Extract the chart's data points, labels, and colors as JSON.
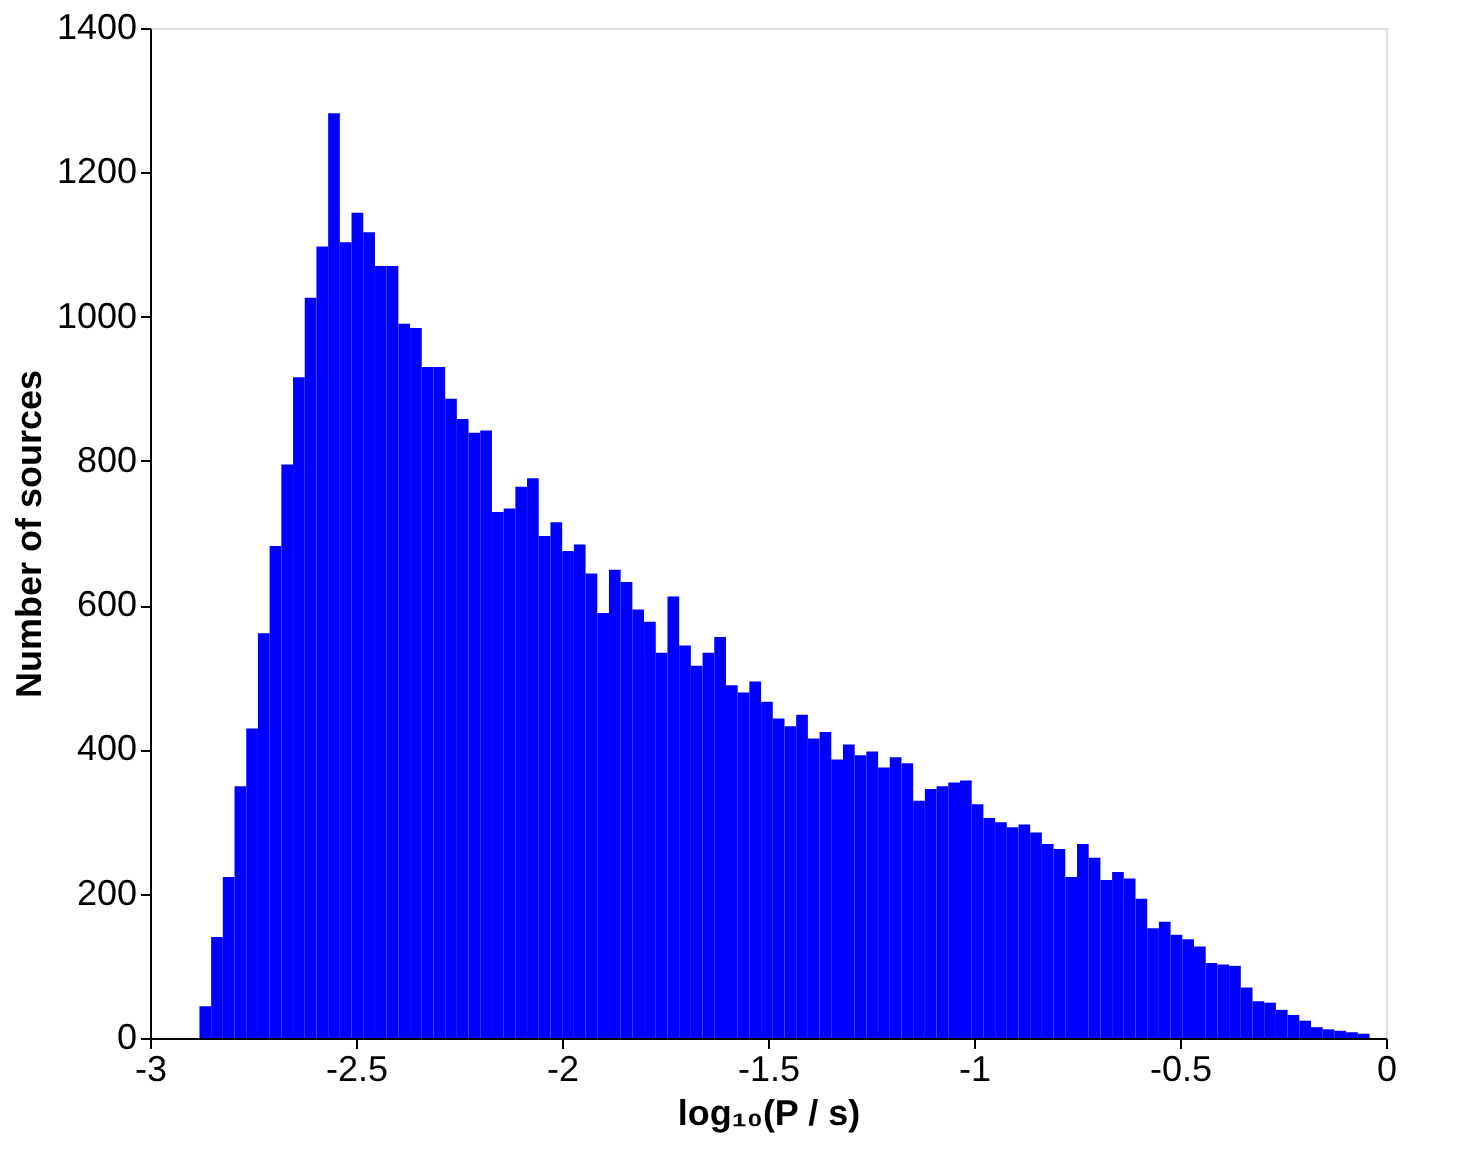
{
  "chart_data": {
    "type": "histogram",
    "xlabel": "log₁₀(P / s)",
    "ylabel": "Number of sources",
    "color": "#0000ff",
    "bins": [
      -2.88,
      -2.8516,
      -2.8232,
      -2.7948,
      -2.7664,
      -2.738,
      -2.7096,
      -2.6812,
      -2.6528,
      -2.6244,
      -2.596,
      -2.5676,
      -2.5392,
      -2.5108,
      -2.4824,
      -2.454,
      -2.4256,
      -2.3972,
      -2.3688,
      -2.3404,
      -2.312,
      -2.2836,
      -2.2552,
      -2.2268,
      -2.1984,
      -2.17,
      -2.1416,
      -2.1132,
      -2.0848,
      -2.0564,
      -2.028,
      -1.9996,
      -1.9712,
      -1.9428,
      -1.9144,
      -1.886,
      -1.8576,
      -1.8292,
      -1.8008,
      -1.7724,
      -1.744,
      -1.7156,
      -1.6872,
      -1.6588,
      -1.6304,
      -1.602,
      -1.5736,
      -1.5452,
      -1.5168,
      -1.4884,
      -1.46,
      -1.4316,
      -1.4032,
      -1.3748,
      -1.3464,
      -1.318,
      -1.2896,
      -1.2612,
      -1.2328,
      -1.2044,
      -1.176,
      -1.1476,
      -1.1192,
      -1.0908,
      -1.0624,
      -1.034,
      -1.0056,
      -0.9772,
      -0.9488,
      -0.9204,
      -0.892,
      -0.8636,
      -0.8352,
      -0.8068,
      -0.7784,
      -0.75,
      -0.7216,
      -0.6932,
      -0.6648,
      -0.6364,
      -0.608,
      -0.5796,
      -0.5512,
      -0.5228,
      -0.4944,
      -0.466,
      -0.4376,
      -0.4092,
      -0.3808,
      -0.3524,
      -0.324,
      -0.2956,
      -0.2672,
      -0.2388,
      -0.2104,
      -0.182,
      -0.1536,
      -0.1252,
      -0.0968,
      -0.0684,
      -0.04
    ],
    "values": [
      44,
      140,
      223,
      349,
      429,
      561,
      682,
      795,
      916,
      1026,
      1097,
      1282,
      1103,
      1144,
      1117,
      1070,
      1070,
      990,
      984,
      930,
      930,
      886,
      858,
      839,
      842,
      729,
      734,
      764,
      776,
      696,
      715,
      675,
      684,
      644,
      589,
      649,
      632,
      594,
      577,
      534,
      612,
      544,
      516,
      534,
      556,
      489,
      479,
      494,
      466,
      443,
      432,
      448,
      415,
      424,
      386,
      407,
      392,
      397,
      375,
      389,
      381,
      329,
      345,
      349,
      354,
      357,
      324,
      305,
      299,
      292,
      296,
      285,
      269,
      262,
      223,
      269,
      250,
      219,
      230,
      221,
      193,
      152,
      161,
      143,
      137,
      127,
      104,
      102,
      100,
      70,
      51,
      49,
      39,
      32,
      24,
      15,
      12,
      10,
      8,
      6
    ],
    "xlim": [
      -3,
      0
    ],
    "xticks": [
      -3,
      -2.5,
      -2,
      -1.5,
      -1,
      -0.5,
      0
    ],
    "ylim": [
      0,
      1400
    ],
    "yticks": [
      0,
      200,
      400,
      600,
      800,
      1000,
      1200,
      1400
    ],
    "grid": false
  }
}
